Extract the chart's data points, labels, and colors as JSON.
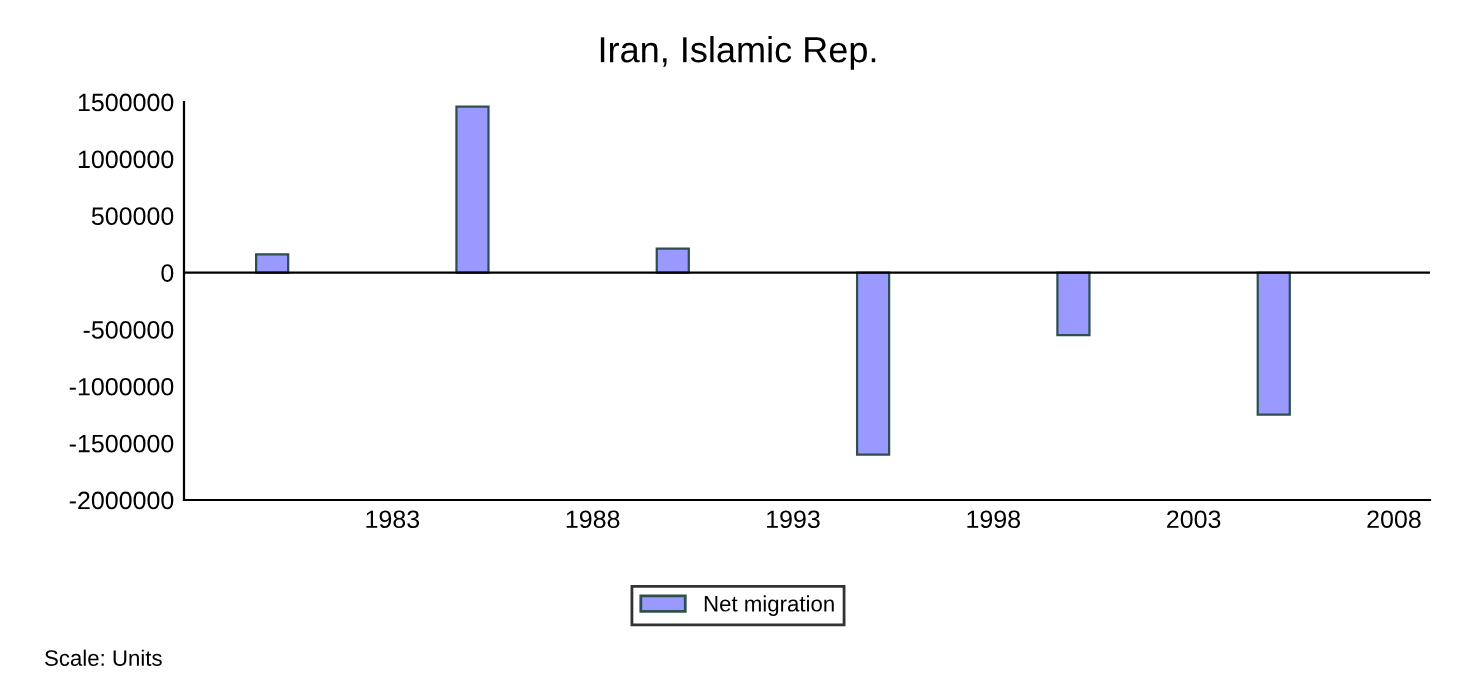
{
  "chart_data": {
    "type": "bar",
    "title": "Iran, Islamic Rep.",
    "x": [
      1980,
      1985,
      1990,
      1995,
      2000,
      2005
    ],
    "series": [
      {
        "name": "Net migration",
        "color": "#9999ff",
        "values": [
          160000,
          1460000,
          210000,
          -1600000,
          -550000,
          -1250000
        ]
      }
    ],
    "xlim": [
      1977.8,
      2008.9
    ],
    "xticks": [
      1983,
      1988,
      1993,
      1998,
      2003,
      2008
    ],
    "ylim": [
      -2000000,
      1500000
    ],
    "yticks": [
      -2000000,
      -1500000,
      -1000000,
      -500000,
      0,
      500000,
      1000000,
      1500000
    ],
    "grid": false,
    "ref_lines": [
      {
        "axis": "y",
        "value": 0,
        "color": "#000000"
      }
    ],
    "legend": "bottom",
    "annotations": [
      "Scale: Units"
    ]
  }
}
